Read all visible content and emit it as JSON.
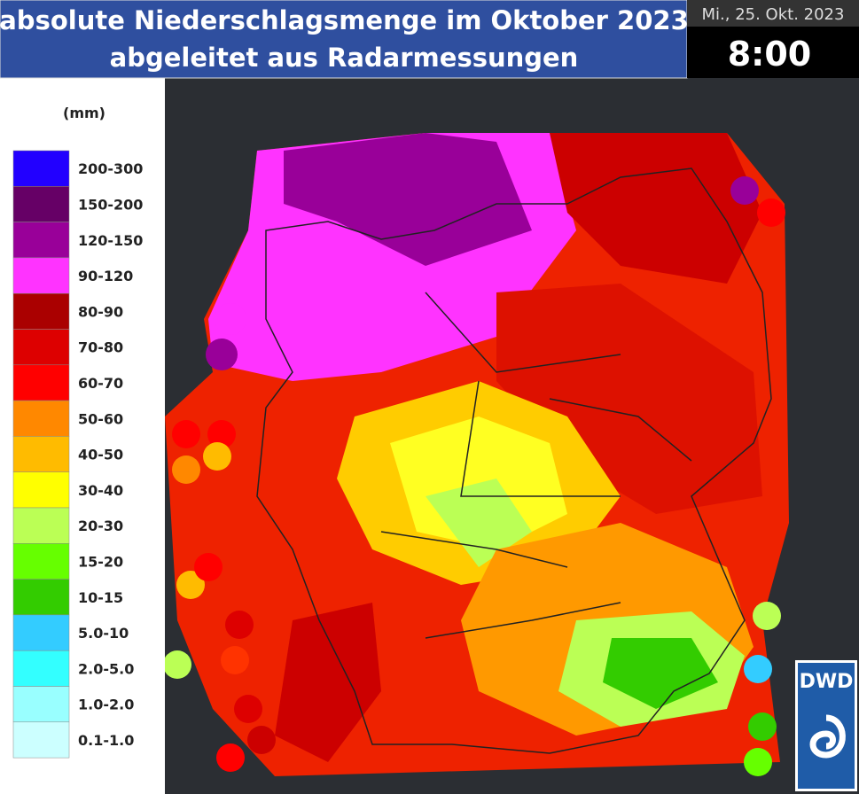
{
  "header": {
    "title": [
      "absolute Niederschlagsmenge im Oktober 2023",
      "abgeleitet aus Radarmessungen"
    ],
    "date": "Mi., 25. Okt. 2023",
    "time": "8:00"
  },
  "legend": {
    "unit": "(mm)",
    "items": [
      {
        "label": "200-300",
        "color": "#2200ff"
      },
      {
        "label": "150-200",
        "color": "#660066"
      },
      {
        "label": "120-150",
        "color": "#990099"
      },
      {
        "label": "90-120",
        "color": "#ff33ff"
      },
      {
        "label": "80-90",
        "color": "#aa0000"
      },
      {
        "label": "70-80",
        "color": "#dd0000"
      },
      {
        "label": "60-70",
        "color": "#ff0000"
      },
      {
        "label": "50-60",
        "color": "#ff8800"
      },
      {
        "label": "40-50",
        "color": "#ffbb00"
      },
      {
        "label": "30-40",
        "color": "#ffff00"
      },
      {
        "label": "20-30",
        "color": "#bbff55"
      },
      {
        "label": "15-20",
        "color": "#66ff00"
      },
      {
        "label": "10-15",
        "color": "#33cc00"
      },
      {
        "label": "5.0-10",
        "color": "#33ccff"
      },
      {
        "label": "2.0-5.0",
        "color": "#33ffff"
      },
      {
        "label": "1.0-2.0",
        "color": "#99ffff"
      },
      {
        "label": "0.1-1.0",
        "color": "#ccffff"
      }
    ]
  },
  "logo": {
    "text": "DWD"
  }
}
